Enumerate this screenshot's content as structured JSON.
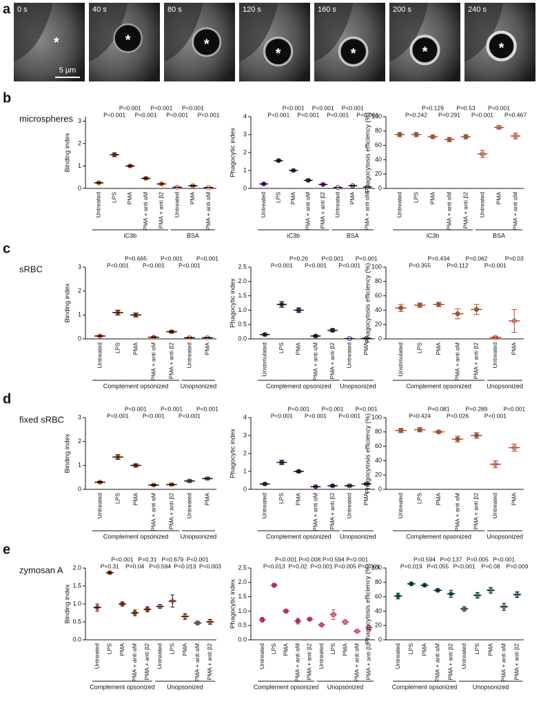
{
  "panel_a": {
    "label": "a",
    "frames": [
      "0 s",
      "40 s",
      "80 s",
      "120 s",
      "160 s",
      "200 s",
      "240 s"
    ],
    "scale_bar": "5 µm",
    "marker": "*"
  },
  "panels": [
    {
      "label": "b",
      "title": "microspheres"
    },
    {
      "label": "c",
      "title": "sRBC"
    },
    {
      "label": "d",
      "title": "fixed sRBC"
    },
    {
      "label": "e",
      "title": "zymosan A"
    }
  ],
  "chart_data": [
    {
      "type": "dot",
      "ylabel": "Binding index",
      "ylim": [
        0,
        3.2
      ],
      "yticks": [
        0,
        1,
        2,
        3
      ],
      "color": "#f05a22",
      "mean_color": "#111111",
      "groups": [
        {
          "name": "iC3b",
          "marker": "filled",
          "categories": [
            "Untreated",
            "LPS",
            "PMA",
            "PMA + anti αM",
            "PMA + anti β2"
          ],
          "means": [
            0.25,
            1.5,
            1.0,
            0.45,
            0.2
          ],
          "errors": [
            0.03,
            0.08,
            0.04,
            0.04,
            0.02
          ],
          "pvalues": [
            null,
            "P<0.001",
            "P<0.001",
            "P<0.001",
            "P<0.001"
          ]
        },
        {
          "name": "BSA",
          "marker": "open",
          "categories": [
            "Untreated",
            "PMA",
            "PMA + anti αM"
          ],
          "means": [
            0.05,
            0.12,
            0.04
          ],
          "errors": [
            0.01,
            0.03,
            0.01
          ],
          "pvalues": [
            "P<0.001",
            "P<0.001",
            "P<0.001"
          ]
        }
      ]
    },
    {
      "type": "dot",
      "ylabel": "Phagocytic index",
      "ylim": [
        0,
        4
      ],
      "yticks": [
        0,
        1,
        2,
        3,
        4
      ],
      "color": "#7b2d8e",
      "mean_color": "#111111",
      "groups": [
        {
          "name": "iC3b",
          "marker": "filled",
          "categories": [
            "Untreated",
            "LPS",
            "PMA",
            "PMA + anti αM",
            "PMA + anti β2"
          ],
          "means": [
            0.25,
            1.55,
            1.0,
            0.45,
            0.22
          ],
          "errors": [
            0.03,
            0.06,
            0.04,
            0.04,
            0.02
          ],
          "pvalues": [
            null,
            "P<0.001",
            "P<0.001",
            "P<0.001",
            "P<0.001"
          ]
        },
        {
          "name": "BSA",
          "marker": "open",
          "categories": [
            "Untreated",
            "PMA",
            "PMA + anti αM"
          ],
          "means": [
            0.05,
            0.15,
            0.08
          ],
          "errors": [
            0.01,
            0.03,
            0.01
          ],
          "pvalues": [
            "P<0.001",
            "P<0.001",
            "P<0.001"
          ]
        }
      ]
    },
    {
      "type": "dot",
      "ylabel": "Phagocytosis efficiency (%)",
      "ylim": [
        0,
        100
      ],
      "yticks": [
        0,
        20,
        40,
        60,
        80,
        100
      ],
      "color": "#1e9a4a",
      "mean_color": "#e0302a",
      "groups": [
        {
          "name": "iC3b",
          "marker": "filled",
          "categories": [
            "Untreated",
            "LPS",
            "PMA",
            "PMA + anti αM",
            "PMA + anti β2"
          ],
          "means": [
            75,
            75,
            72,
            68,
            72
          ],
          "errors": [
            3,
            3,
            2,
            3,
            3
          ],
          "pvalues": [
            null,
            "P=0.242",
            "P=0.129",
            "P=0.291",
            "P=0.53"
          ]
        },
        {
          "name": "BSA",
          "marker": "open",
          "categories": [
            "Untreated",
            "PMA",
            "PMA + anti αM"
          ],
          "means": [
            48,
            85,
            73
          ],
          "errors": [
            5,
            2,
            4
          ],
          "pvalues": [
            "P<0.001",
            "P<0.001",
            "P=0.467"
          ]
        }
      ]
    },
    {
      "type": "dot",
      "ylabel": "Binding index",
      "ylim": [
        0,
        3
      ],
      "yticks": [
        0,
        1,
        2,
        3
      ],
      "color": "#f05a22",
      "mean_color": "#111111",
      "groups": [
        {
          "name": "Complement opsonized",
          "marker": "filled",
          "categories": [
            "Untreated",
            "LPS",
            "PMA",
            "PMA + anti αM",
            "PMA + anti β2"
          ],
          "means": [
            0.12,
            1.1,
            1.0,
            0.07,
            0.3
          ],
          "errors": [
            0.02,
            0.1,
            0.08,
            0.02,
            0.04
          ],
          "pvalues": [
            null,
            "P<0.001",
            "P=0.665",
            "P<0.001",
            "P<0.001"
          ]
        },
        {
          "name": "Unopsonized",
          "marker": "open",
          "categories": [
            "Untreated",
            "PMA"
          ],
          "means": [
            0.05,
            0.05
          ],
          "errors": [
            0.02,
            0.02
          ],
          "pvalues": [
            "P<0.001",
            "P<0.001"
          ]
        }
      ]
    },
    {
      "type": "dot",
      "ylabel": "Phagocytic index",
      "ylim": [
        0,
        2.5
      ],
      "yticks": [
        {
          "value": 0,
          "label": "0.0"
        },
        0.5,
        {
          "value": 1,
          "label": "1.0"
        },
        1.5,
        {
          "value": 2,
          "label": "2.0"
        },
        2.5
      ],
      "color": "#7b2d8e",
      "mean_color": "#111111",
      "groups": [
        {
          "name": "Complement opsonized",
          "marker": "filled",
          "categories": [
            "Unstimulated",
            "LPS",
            "PMA",
            "PMA + anti αM",
            "PMA + anti β2"
          ],
          "means": [
            0.15,
            1.2,
            1.0,
            0.1,
            0.3
          ],
          "errors": [
            0.03,
            0.1,
            0.08,
            0.03,
            0.05
          ],
          "pvalues": [
            null,
            "P<0.001",
            "P=0.26",
            "P<0.001",
            "P<0.001"
          ]
        },
        {
          "name": "Unopsonized",
          "marker": "open",
          "categories": [
            "Untreated",
            "PMA"
          ],
          "means": [
            0.01,
            0.02
          ],
          "errors": [
            0.005,
            0.01
          ],
          "pvalues": [
            "P<0.001",
            "P<0.001"
          ]
        }
      ]
    },
    {
      "type": "dot",
      "ylabel": "Phagocytosis efficiency (%)",
      "ylim": [
        0,
        100
      ],
      "yticks": [
        0,
        20,
        40,
        60,
        80,
        100
      ],
      "color": "#1e9a4a",
      "mean_color": "#e0302a",
      "groups": [
        {
          "name": "Complement opsonized",
          "marker": "filled",
          "categories": [
            "Unstimulated",
            "LPS",
            "PMA",
            "PMA + anti αM",
            "PMA + anti β2"
          ],
          "means": [
            43,
            47,
            48,
            35,
            41
          ],
          "errors": [
            5,
            3,
            3,
            7,
            7
          ],
          "pvalues": [
            null,
            "P=0.355",
            "P=0.434",
            "P=0.112",
            "P=0.062"
          ]
        },
        {
          "name": "Unopsonized",
          "marker": "open",
          "categories": [
            "Untreated",
            "PMA"
          ],
          "means": [
            2,
            25
          ],
          "errors": [
            1,
            16
          ],
          "pvalues": [
            "P<0.001",
            "P=0.03"
          ]
        }
      ]
    },
    {
      "type": "dot",
      "ylabel": "Binding index",
      "ylim": [
        0,
        3
      ],
      "yticks": [
        0,
        1,
        2,
        3
      ],
      "color": "#f05a22",
      "mean_color": "#111111",
      "groups": [
        {
          "name": "Complement opsonized",
          "marker": "filled",
          "categories": [
            "Untreated",
            "LPS",
            "PMA",
            "PMA + anti αM",
            "PMA + anti β2"
          ],
          "means": [
            0.3,
            1.35,
            1.0,
            0.18,
            0.2
          ],
          "errors": [
            0.03,
            0.1,
            0.06,
            0.03,
            0.03
          ],
          "pvalues": [
            null,
            "P<0.001",
            "P<0.001",
            "P<0.001",
            "P<0.001"
          ]
        },
        {
          "name": "Unopsonized",
          "marker": "open",
          "categories": [
            "Untreated",
            "PMA"
          ],
          "means": [
            0.35,
            0.45
          ],
          "errors": [
            0.05,
            0.04
          ],
          "pvalues": [
            "P<0.001",
            "P<0.001"
          ]
        }
      ]
    },
    {
      "type": "dot",
      "ylabel": "Phagocytic index",
      "ylim": [
        0,
        4
      ],
      "yticks": [
        0,
        1,
        2,
        3,
        4
      ],
      "color": "#7b2d8e",
      "mean_color": "#111111",
      "groups": [
        {
          "name": "Complement opsonized",
          "marker": "filled",
          "categories": [
            "Untreated",
            "LPS",
            "PMA",
            "PMA + anti αM",
            "PMA + anti β2"
          ],
          "means": [
            0.3,
            1.5,
            1.0,
            0.15,
            0.2
          ],
          "errors": [
            0.04,
            0.12,
            0.06,
            0.03,
            0.04
          ],
          "pvalues": [
            null,
            "P<0.001",
            "P<0.001",
            "P<0.001",
            "P<0.001"
          ]
        },
        {
          "name": "Unopsonized",
          "marker": "open",
          "categories": [
            "Untreated",
            "PMA"
          ],
          "means": [
            0.2,
            0.3
          ],
          "errors": [
            0.05,
            0.05
          ],
          "pvalues": [
            "P<0.001",
            "P<0.001"
          ]
        }
      ]
    },
    {
      "type": "dot",
      "ylabel": "Phagocytosis efficiency (%)",
      "ylim": [
        0,
        100
      ],
      "yticks": [
        0,
        20,
        40,
        60,
        80,
        100
      ],
      "color": "#1e9a4a",
      "mean_color": "#e0302a",
      "groups": [
        {
          "name": "Complement opsonized",
          "marker": "filled",
          "categories": [
            "Untreated",
            "LPS",
            "PMA",
            "PMA + anti αM",
            "PMA + anti β2"
          ],
          "means": [
            82,
            83,
            80,
            70,
            75
          ],
          "errors": [
            3,
            3,
            2,
            4,
            4
          ],
          "pvalues": [
            null,
            "P=0.424",
            "P=0.081",
            "P=0.026",
            "P=0.289"
          ]
        },
        {
          "name": "Unopsonized",
          "marker": "open",
          "categories": [
            "Untreated",
            "PMA"
          ],
          "means": [
            35,
            58
          ],
          "errors": [
            5,
            5
          ],
          "pvalues": [
            "P<0.001",
            "P<0.001"
          ]
        }
      ]
    },
    {
      "type": "dot",
      "ylabel": "Binding index",
      "ylim": [
        0,
        2
      ],
      "yticks": [
        {
          "value": 0,
          "label": "0.0"
        },
        0.5,
        {
          "value": 1,
          "label": "1.0"
        },
        1.5,
        {
          "value": 2,
          "label": "2.0"
        }
      ],
      "color": "#f05a22",
      "mean_color": "#111111",
      "groups": [
        {
          "name": "Complement opsonized",
          "marker": "filled",
          "categories": [
            "Untreated",
            "LPS",
            "PMA",
            "PMA + anti αM",
            "PMA + anti β2"
          ],
          "means": [
            0.9,
            1.87,
            1.0,
            0.75,
            0.85
          ],
          "errors": [
            0.1,
            0.03,
            0.06,
            0.08,
            0.07
          ],
          "pvalues": [
            null,
            "P=0.31",
            "P<0.001",
            "P=0.04",
            "P=0.31"
          ]
        },
        {
          "name": "Unopsonized",
          "marker": "open",
          "categories": [
            "Untreated",
            "LPS",
            "PMA",
            "PMA + anti αM",
            "PMA + anti β2"
          ],
          "means": [
            0.93,
            1.08,
            0.65,
            0.47,
            0.5
          ],
          "errors": [
            0.05,
            0.17,
            0.08,
            0.05,
            0.07
          ],
          "pvalues": [
            "P=0.594",
            "P=0.679",
            "P=0.013",
            "P<0.001",
            "P=0.003"
          ]
        }
      ]
    },
    {
      "type": "dot",
      "ylabel": "Phagocytic index",
      "ylim": [
        0,
        2.5
      ],
      "yticks": [
        {
          "value": 0,
          "label": "0.0"
        },
        0.5,
        {
          "value": 1,
          "label": "1.0"
        },
        1.5,
        {
          "value": 2,
          "label": "2.0"
        },
        2.5
      ],
      "color": "#7b2d8e",
      "mean_color": "#e0302a",
      "groups": [
        {
          "name": "Complement opsonized",
          "marker": "filled",
          "categories": [
            "Untreated",
            "LPS",
            "PMA",
            "PMA + anti αM",
            "PMA + anti β2"
          ],
          "means": [
            0.7,
            1.9,
            1.0,
            0.65,
            0.72
          ],
          "errors": [
            0.08,
            0.07,
            0.06,
            0.1,
            0.06
          ],
          "pvalues": [
            null,
            "P=0.013",
            "P<0.001",
            "P=0.02",
            "P=0.008"
          ]
        },
        {
          "name": "Unopsonized",
          "marker": "open",
          "categories": [
            "Untreated",
            "LPS",
            "PMA",
            "PMA + anti αM",
            "PMA + anti β2"
          ],
          "means": [
            0.52,
            0.88,
            0.62,
            0.3,
            0.42
          ],
          "errors": [
            0.04,
            0.17,
            0.08,
            0.06,
            0.08
          ],
          "pvalues": [
            "P<0.001",
            "P=0.594",
            "P=0.005",
            "P<0.001",
            "P=0.001"
          ]
        }
      ]
    },
    {
      "type": "dot",
      "ylabel": "Phagocytosis efficiency (%)",
      "ylim": [
        0,
        100
      ],
      "yticks": [
        0,
        20,
        40,
        60,
        80,
        100
      ],
      "color": "#1e9a4a",
      "mean_color": "#111111",
      "groups": [
        {
          "name": "Complement opsonized",
          "marker": "filled",
          "categories": [
            "Untreated",
            "LPS",
            "PMA",
            "PMA + anti αM",
            "PMA + anti β2"
          ],
          "means": [
            61,
            78,
            76,
            69,
            64
          ],
          "errors": [
            4,
            2,
            2,
            2,
            5
          ],
          "pvalues": [
            null,
            "P=0.019",
            "P=0.594",
            "P=0.055",
            "P=0.137"
          ]
        },
        {
          "name": "Unopsonized",
          "marker": "open",
          "categories": [
            "Untreated",
            "LPS",
            "PMA",
            "PMA + anti αM",
            "PMA + anti β2"
          ],
          "means": [
            43,
            62,
            69,
            46,
            63
          ],
          "errors": [
            3,
            4,
            4,
            5,
            4
          ],
          "pvalues": [
            "P<0.001",
            "P=0.005",
            "P=0.08",
            "P<0.001",
            "P=0.009"
          ]
        }
      ]
    }
  ]
}
